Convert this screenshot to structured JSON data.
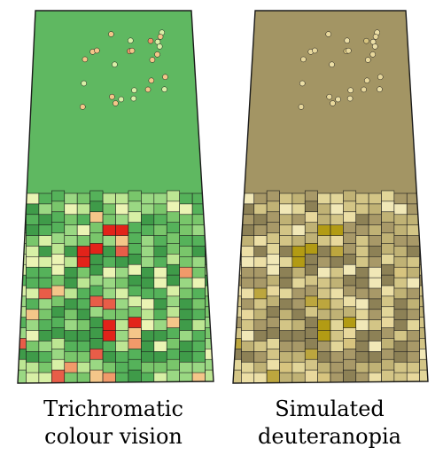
{
  "captions": {
    "left": {
      "line1": "Trichromatic",
      "line2": "colour vision"
    },
    "right": {
      "line1": "Simulated",
      "line2": "deuteranopia"
    }
  },
  "palettes": {
    "trichromatic": {
      "north": "#5fb861",
      "cells": [
        "#3f9b49",
        "#55b25a",
        "#79c66b",
        "#9ad883",
        "#bde693",
        "#d8f0a6",
        "#ebf4b4",
        "#f4c689",
        "#f19a6a",
        "#e85d48",
        "#e2231a"
      ]
    },
    "deuteranopia": {
      "north": "#a39564",
      "cells": [
        "#8d8156",
        "#a89968",
        "#c0b275",
        "#d3c586",
        "#e2d699",
        "#ecdfa6",
        "#f1e8b7",
        "#e8d89c",
        "#d7c47f",
        "#bca63e",
        "#b29b14"
      ]
    }
  },
  "outline_color": "#1a1a1a"
}
